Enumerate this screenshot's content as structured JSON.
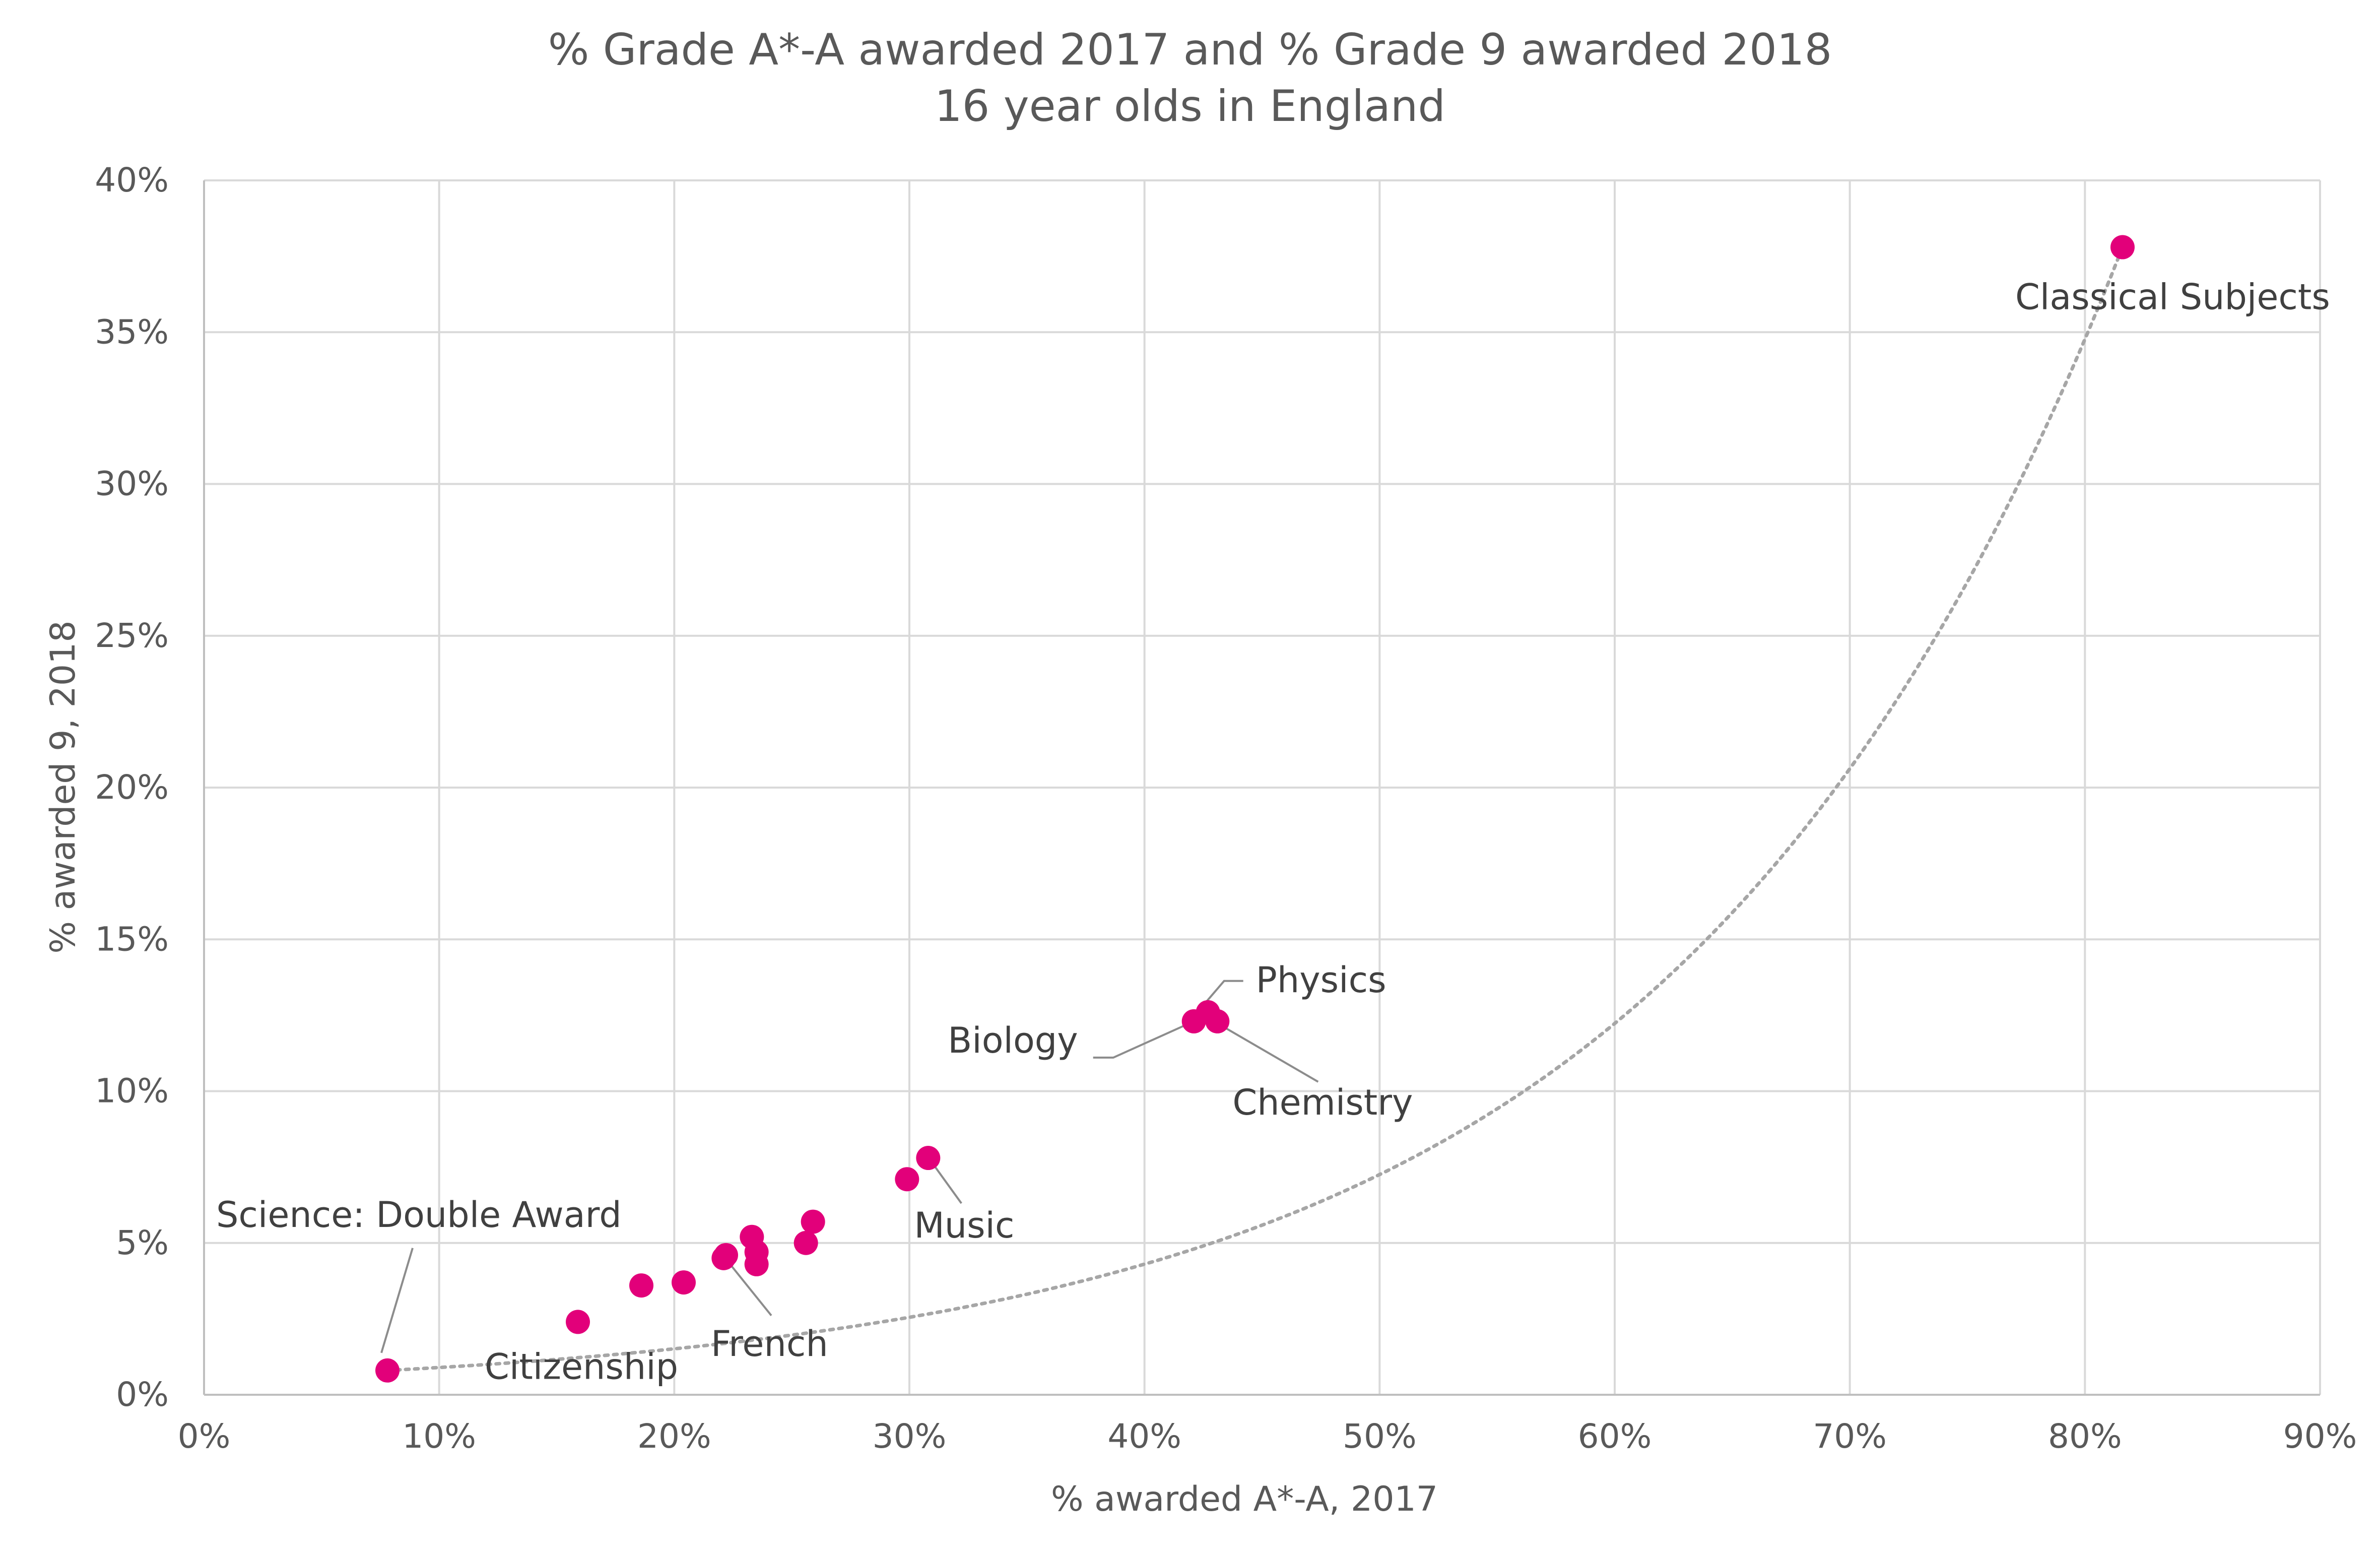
{
  "chart_data": {
    "type": "scatter",
    "title": "% Grade A*-A awarded 2017 and % Grade 9 awarded 2018",
    "subtitle": "16 year olds in England",
    "xlabel": "% awarded A*-A, 2017",
    "ylabel": "% awarded 9, 2018",
    "xlim": [
      0,
      90
    ],
    "ylim": [
      0,
      40
    ],
    "x_ticks": [
      0,
      10,
      20,
      30,
      40,
      50,
      60,
      70,
      80,
      90
    ],
    "y_ticks": [
      0,
      5,
      10,
      15,
      20,
      25,
      30,
      35,
      40
    ],
    "x_tick_labels": [
      "0%",
      "10%",
      "20%",
      "30%",
      "40%",
      "50%",
      "60%",
      "70%",
      "80%",
      "90%"
    ],
    "y_tick_labels": [
      "0%",
      "5%",
      "10%",
      "15%",
      "20%",
      "25%",
      "30%",
      "35%",
      "40%"
    ],
    "grid": true,
    "legend": "none",
    "points": [
      {
        "x": 7.8,
        "y": 0.8,
        "label": "Science: Double Award"
      },
      {
        "x": 15.9,
        "y": 2.4,
        "label": "Citizenship"
      },
      {
        "x": 18.6,
        "y": 3.6
      },
      {
        "x": 20.4,
        "y": 3.7
      },
      {
        "x": 22.1,
        "y": 4.5
      },
      {
        "x": 22.2,
        "y": 4.6,
        "label": "French"
      },
      {
        "x": 23.3,
        "y": 5.2
      },
      {
        "x": 23.5,
        "y": 4.3
      },
      {
        "x": 23.5,
        "y": 4.7
      },
      {
        "x": 25.6,
        "y": 5.0
      },
      {
        "x": 25.9,
        "y": 5.7
      },
      {
        "x": 29.9,
        "y": 7.1
      },
      {
        "x": 30.8,
        "y": 7.8,
        "label": "Music"
      },
      {
        "x": 42.1,
        "y": 12.3,
        "label": "Biology"
      },
      {
        "x": 42.7,
        "y": 12.6,
        "label": "Physics"
      },
      {
        "x": 43.1,
        "y": 12.3,
        "label": "Chemistry"
      },
      {
        "x": 81.6,
        "y": 37.8,
        "label": "Classical Subjects"
      }
    ],
    "trendline": {
      "type": "exponential",
      "style": "dotted",
      "x_range": [
        7.8,
        81.6
      ],
      "y_range": [
        0.8,
        37.8
      ]
    },
    "colors": {
      "points": "#e2007a",
      "trendline": "#a6a6a6"
    }
  }
}
